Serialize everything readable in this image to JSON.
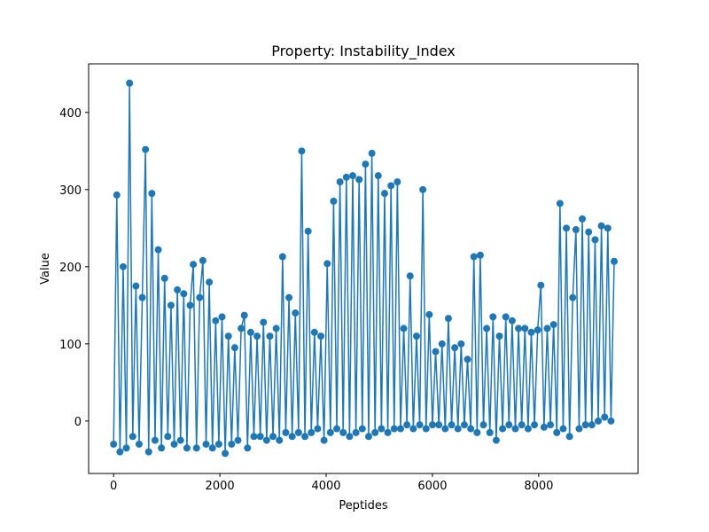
{
  "chart_data": {
    "type": "line",
    "title": "Property: Instability_Index",
    "x_label": "Peptides",
    "y_label": "Value",
    "xlim": [
      -470,
      9870
    ],
    "ylim": [
      -68,
      463
    ],
    "xticks": [
      0,
      2000,
      4000,
      6000,
      8000
    ],
    "yticks": [
      0,
      100,
      200,
      300,
      400
    ],
    "series": [
      {
        "name": "Instability_Index",
        "color": "#1f77b4",
        "marker": true,
        "x": [
          0,
          60,
          120,
          180,
          240,
          300,
          360,
          420,
          480,
          540,
          600,
          660,
          720,
          780,
          840,
          900,
          960,
          1020,
          1080,
          1140,
          1200,
          1260,
          1320,
          1380,
          1440,
          1500,
          1560,
          1620,
          1680,
          1740,
          1800,
          1860,
          1920,
          1980,
          2040,
          2100,
          2160,
          2220,
          2280,
          2340,
          2400,
          2460,
          2520,
          2580,
          2640,
          2700,
          2760,
          2820,
          2880,
          2940,
          3000,
          3060,
          3120,
          3180,
          3240,
          3300,
          3360,
          3420,
          3480,
          3540,
          3600,
          3660,
          3720,
          3780,
          3840,
          3900,
          3960,
          4020,
          4080,
          4140,
          4200,
          4260,
          4320,
          4380,
          4440,
          4500,
          4560,
          4620,
          4680,
          4740,
          4800,
          4860,
          4920,
          4980,
          5040,
          5100,
          5160,
          5220,
          5280,
          5340,
          5400,
          5460,
          5520,
          5580,
          5640,
          5700,
          5760,
          5820,
          5880,
          5940,
          6000,
          6060,
          6120,
          6180,
          6240,
          6300,
          6360,
          6420,
          6480,
          6540,
          6600,
          6660,
          6720,
          6780,
          6840,
          6900,
          6960,
          7020,
          7080,
          7140,
          7200,
          7260,
          7320,
          7380,
          7440,
          7500,
          7560,
          7620,
          7680,
          7740,
          7800,
          7860,
          7920,
          7980,
          8040,
          8100,
          8160,
          8220,
          8280,
          8340,
          8400,
          8460,
          8520,
          8580,
          8640,
          8700,
          8760,
          8820,
          8880,
          8940,
          9000,
          9060,
          9120,
          9180,
          9240,
          9300,
          9360,
          9420
        ],
        "values": [
          -30,
          293,
          -40,
          200,
          -35,
          438,
          -20,
          175,
          -30,
          160,
          352,
          -40,
          295,
          -25,
          222,
          -35,
          185,
          -20,
          150,
          -30,
          170,
          -25,
          165,
          -35,
          150,
          203,
          -35,
          160,
          208,
          -30,
          180,
          -35,
          130,
          -30,
          135,
          -42,
          110,
          -30,
          95,
          -25,
          120,
          137,
          -35,
          115,
          -20,
          110,
          -20,
          128,
          -25,
          110,
          -20,
          120,
          -25,
          213,
          -15,
          160,
          -20,
          140,
          -15,
          350,
          -20,
          246,
          -15,
          115,
          -10,
          110,
          -25,
          204,
          -15,
          285,
          -10,
          310,
          -15,
          316,
          -20,
          318,
          -15,
          313,
          -10,
          333,
          -20,
          347,
          -15,
          318,
          -10,
          295,
          -15,
          305,
          -10,
          310,
          -10,
          120,
          -5,
          188,
          -10,
          110,
          -5,
          300,
          -10,
          138,
          -5,
          90,
          -5,
          100,
          -10,
          133,
          -5,
          95,
          -10,
          100,
          -5,
          80,
          -10,
          213,
          -15,
          215,
          -5,
          120,
          -15,
          135,
          -25,
          110,
          -10,
          135,
          -5,
          130,
          -10,
          120,
          -5,
          120,
          -10,
          115,
          -5,
          118,
          176,
          -8,
          120,
          -5,
          125,
          -15,
          282,
          -10,
          250,
          -20,
          160,
          248,
          -10,
          262,
          -5,
          245,
          -5,
          235,
          0,
          253,
          5,
          250,
          0,
          207
        ]
      }
    ]
  }
}
